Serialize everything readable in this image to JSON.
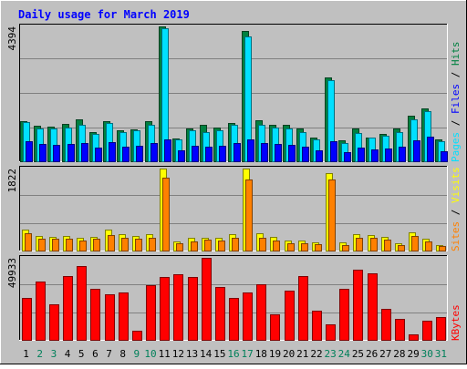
{
  "chart_data": [
    {
      "type": "bar",
      "panel": "hits-files-pages",
      "title": "Daily usage for March 2019",
      "ylabel": "Pages / Files / Hits",
      "max_label": "4394",
      "ylim": [
        0,
        4394
      ],
      "categories": [
        "1",
        "2",
        "3",
        "4",
        "5",
        "6",
        "7",
        "8",
        "9",
        "10",
        "11",
        "12",
        "13",
        "14",
        "15",
        "16",
        "17",
        "18",
        "19",
        "20",
        "21",
        "22",
        "23",
        "24",
        "25",
        "26",
        "27",
        "28",
        "29",
        "30",
        "31"
      ],
      "series": [
        {
          "name": "Hits",
          "color": "#008040",
          "values": [
            1300,
            1150,
            1120,
            1220,
            1360,
            960,
            1300,
            1020,
            1040,
            1320,
            4394,
            740,
            1080,
            1180,
            1100,
            1260,
            4260,
            1340,
            1200,
            1180,
            1080,
            760,
            2720,
            680,
            1080,
            780,
            880,
            1060,
            1480,
            1720,
            700
          ]
        },
        {
          "name": "Files",
          "color": "#00e0ff",
          "values": [
            1280,
            1080,
            1060,
            1100,
            1180,
            900,
            1240,
            960,
            1000,
            1200,
            4320,
            700,
            1020,
            960,
            1000,
            1180,
            4080,
            1180,
            1100,
            1060,
            940,
            700,
            2640,
            580,
            920,
            760,
            820,
            960,
            1380,
            1620,
            660
          ]
        },
        {
          "name": "Pages",
          "color": "#0000ff",
          "values": [
            650,
            550,
            520,
            560,
            600,
            450,
            620,
            480,
            500,
            600,
            700,
            350,
            510,
            480,
            500,
            590,
            720,
            590,
            550,
            530,
            470,
            350,
            650,
            290,
            460,
            380,
            410,
            480,
            690,
            810,
            330
          ]
        }
      ]
    },
    {
      "type": "bar",
      "panel": "visits-sites",
      "ylabel": "Sites / Visits",
      "max_label": "1822",
      "ylim": [
        0,
        1822
      ],
      "categories": [
        "1",
        "2",
        "3",
        "4",
        "5",
        "6",
        "7",
        "8",
        "9",
        "10",
        "11",
        "12",
        "13",
        "14",
        "15",
        "16",
        "17",
        "18",
        "19",
        "20",
        "21",
        "22",
        "23",
        "24",
        "25",
        "26",
        "27",
        "28",
        "29",
        "30",
        "31"
      ],
      "series": [
        {
          "name": "Visits",
          "color": "#ffff00",
          "values": [
            470,
            320,
            310,
            320,
            290,
            310,
            460,
            360,
            330,
            360,
            1822,
            210,
            280,
            280,
            290,
            360,
            1822,
            380,
            300,
            230,
            220,
            180,
            1720,
            180,
            360,
            340,
            300,
            160,
            410,
            270,
            130
          ]
        },
        {
          "name": "Sites",
          "color": "#ff8000",
          "values": [
            390,
            270,
            260,
            270,
            230,
            260,
            350,
            290,
            270,
            280,
            1620,
            160,
            210,
            240,
            230,
            290,
            1570,
            280,
            230,
            170,
            170,
            140,
            1570,
            130,
            280,
            280,
            240,
            120,
            320,
            210,
            100
          ]
        }
      ]
    },
    {
      "type": "bar",
      "panel": "kbytes",
      "ylabel": "KBytes",
      "max_label": "49933",
      "ylim": [
        0,
        49933
      ],
      "categories": [
        "1",
        "2",
        "3",
        "4",
        "5",
        "6",
        "7",
        "8",
        "9",
        "10",
        "11",
        "12",
        "13",
        "14",
        "15",
        "16",
        "17",
        "18",
        "19",
        "20",
        "21",
        "22",
        "23",
        "24",
        "25",
        "26",
        "27",
        "28",
        "29",
        "30",
        "31"
      ],
      "weekend_days": [
        2,
        3,
        9,
        10,
        16,
        17,
        23,
        24,
        30,
        31
      ],
      "series": [
        {
          "name": "KBytes",
          "color": "#ff0000",
          "values": [
            25400,
            35700,
            21800,
            38700,
            45100,
            31200,
            28000,
            28700,
            5400,
            33300,
            38500,
            39900,
            38500,
            49933,
            32300,
            25700,
            29100,
            33700,
            15500,
            30000,
            38700,
            17500,
            9400,
            31200,
            42600,
            40700,
            18600,
            12500,
            3600,
            11600,
            13900
          ]
        }
      ]
    }
  ]
}
